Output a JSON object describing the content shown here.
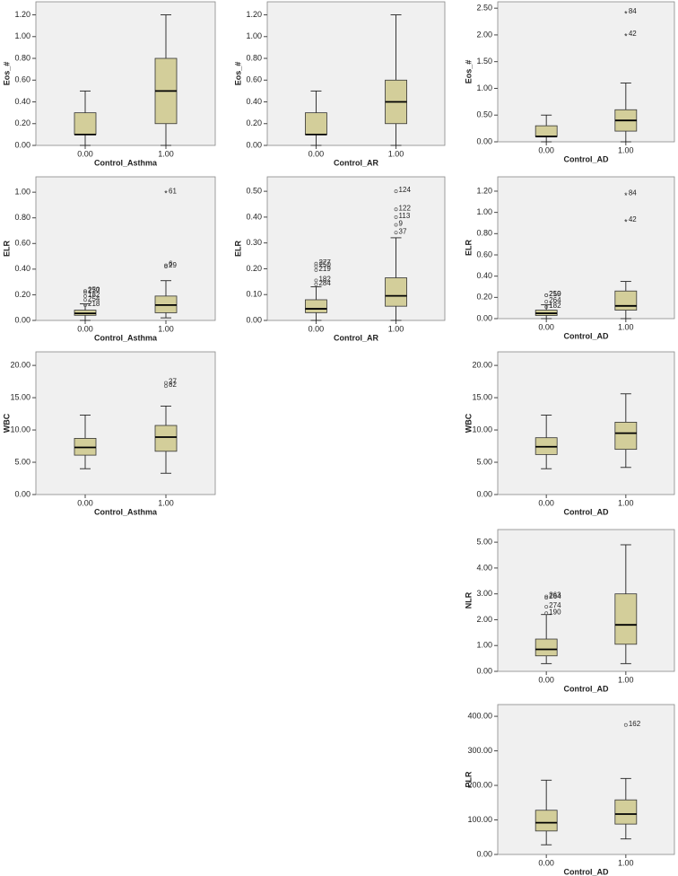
{
  "chart_data": [
    {
      "type": "box",
      "ylabel": "Eos_#",
      "xlabel": "Control_Asthma",
      "categories": [
        "0.00",
        "1.00"
      ],
      "color": "#d3ce9a",
      "ylim": [
        0,
        1.32
      ],
      "yticks": [
        {
          "value": 0,
          "label": "0.00"
        },
        {
          "value": 0.2,
          "label": "0.20"
        },
        {
          "value": 0.4,
          "label": "0.40"
        },
        {
          "value": 0.6,
          "label": "0.60"
        },
        {
          "value": 0.8,
          "label": "0.80"
        },
        {
          "value": 1,
          "label": "1.00"
        },
        {
          "value": 1.2,
          "label": "1.20"
        }
      ],
      "boxes": [
        {
          "min": 0,
          "q1": 0.1,
          "median": 0.1,
          "q3": 0.3,
          "max": 0.5,
          "outliers": []
        },
        {
          "min": 0,
          "q1": 0.2,
          "median": 0.5,
          "q3": 0.8,
          "max": 1.2,
          "outliers": []
        }
      ]
    },
    {
      "type": "box",
      "ylabel": "Eos_#",
      "xlabel": "Control_AR",
      "categories": [
        "0.00",
        "1.00"
      ],
      "color": "#d3ce9a",
      "ylim": [
        0,
        1.32
      ],
      "yticks": [
        {
          "value": 0,
          "label": "0.00"
        },
        {
          "value": 0.2,
          "label": "0.20"
        },
        {
          "value": 0.4,
          "label": "0.40"
        },
        {
          "value": 0.6,
          "label": "0.60"
        },
        {
          "value": 0.8,
          "label": "0.80"
        },
        {
          "value": 1,
          "label": "1.00"
        },
        {
          "value": 1.2,
          "label": "1.20"
        }
      ],
      "boxes": [
        {
          "min": 0,
          "q1": 0.1,
          "median": 0.1,
          "q3": 0.3,
          "max": 0.5,
          "outliers": []
        },
        {
          "min": 0,
          "q1": 0.2,
          "median": 0.4,
          "q3": 0.6,
          "max": 1.2,
          "outliers": []
        }
      ]
    },
    {
      "type": "box",
      "ylabel": "Eos_#",
      "xlabel": "Control_AD",
      "categories": [
        "0.00",
        "1.00"
      ],
      "color": "#d3ce9a",
      "ylim": [
        0,
        2.62
      ],
      "yticks": [
        {
          "value": 0,
          "label": "0.00"
        },
        {
          "value": 0.5,
          "label": "0.50"
        },
        {
          "value": 1,
          "label": "1.00"
        },
        {
          "value": 1.5,
          "label": "1.50"
        },
        {
          "value": 2,
          "label": "2.00"
        },
        {
          "value": 2.5,
          "label": "2.50"
        }
      ],
      "boxes": [
        {
          "min": 0,
          "q1": 0.1,
          "median": 0.1,
          "q3": 0.3,
          "max": 0.5,
          "outliers": []
        },
        {
          "min": 0,
          "q1": 0.2,
          "median": 0.4,
          "q3": 0.6,
          "max": 1.1,
          "outliers": [
            {
              "value": 2.42,
              "label": "84",
              "marker": "star"
            },
            {
              "value": 2.0,
              "label": "42",
              "marker": "star"
            }
          ]
        }
      ]
    },
    {
      "type": "box",
      "ylabel": "ELR",
      "xlabel": "Control_Asthma",
      "categories": [
        "0.00",
        "1.00"
      ],
      "color": "#d3ce9a",
      "ylim": [
        0,
        1.12
      ],
      "yticks": [
        {
          "value": 0,
          "label": "0.00"
        },
        {
          "value": 0.2,
          "label": "0.20"
        },
        {
          "value": 0.4,
          "label": "0.40"
        },
        {
          "value": 0.6,
          "label": "0.60"
        },
        {
          "value": 0.8,
          "label": "0.80"
        },
        {
          "value": 1,
          "label": "1.00"
        }
      ],
      "boxes": [
        {
          "min": 0,
          "q1": 0.04,
          "median": 0.055,
          "q3": 0.08,
          "max": 0.13,
          "outliers": [
            {
              "value": 0.22,
              "label": "277",
              "marker": "circle"
            },
            {
              "value": 0.23,
              "label": "250",
              "marker": "circle"
            },
            {
              "value": 0.16,
              "label": "254",
              "marker": "circle"
            },
            {
              "value": 0.19,
              "label": "182",
              "marker": "circle"
            },
            {
              "value": 0.12,
              "label": "218",
              "marker": "circle"
            }
          ]
        },
        {
          "min": 0.02,
          "q1": 0.06,
          "median": 0.12,
          "q3": 0.19,
          "max": 0.31,
          "outliers": [
            {
              "value": 1.0,
              "label": "61",
              "marker": "star"
            },
            {
              "value": 0.43,
              "label": "6",
              "marker": "circle"
            },
            {
              "value": 0.42,
              "label": "29",
              "marker": "circle"
            }
          ]
        }
      ]
    },
    {
      "type": "box",
      "ylabel": "ELR",
      "xlabel": "Control_AR",
      "categories": [
        "0.00",
        "1.00"
      ],
      "color": "#d3ce9a",
      "ylim": [
        0,
        0.556
      ],
      "yticks": [
        {
          "value": 0,
          "label": "0.00"
        },
        {
          "value": 0.1,
          "label": "0.10"
        },
        {
          "value": 0.2,
          "label": "0.20"
        },
        {
          "value": 0.3,
          "label": "0.30"
        },
        {
          "value": 0.4,
          "label": "0.40"
        },
        {
          "value": 0.5,
          "label": "0.50"
        }
      ],
      "boxes": [
        {
          "min": 0,
          "q1": 0.03,
          "median": 0.045,
          "q3": 0.08,
          "max": 0.13,
          "outliers": [
            {
              "value": 0.21,
              "label": "250",
              "marker": "circle"
            },
            {
              "value": 0.22,
              "label": "277",
              "marker": "circle"
            },
            {
              "value": 0.195,
              "label": "219",
              "marker": "circle"
            },
            {
              "value": 0.155,
              "label": "182",
              "marker": "circle"
            },
            {
              "value": 0.14,
              "label": "284",
              "marker": "circle"
            }
          ]
        },
        {
          "min": 0,
          "q1": 0.055,
          "median": 0.095,
          "q3": 0.165,
          "max": 0.32,
          "outliers": [
            {
              "value": 0.5,
              "label": "124",
              "marker": "circle"
            },
            {
              "value": 0.43,
              "label": "122",
              "marker": "circle"
            },
            {
              "value": 0.4,
              "label": "113",
              "marker": "circle"
            },
            {
              "value": 0.37,
              "label": "9",
              "marker": "circle"
            },
            {
              "value": 0.34,
              "label": "37",
              "marker": "circle"
            }
          ]
        }
      ]
    },
    {
      "type": "box",
      "ylabel": "ELR",
      "xlabel": "Control_AD",
      "categories": [
        "0.00",
        "1.00"
      ],
      "color": "#d3ce9a",
      "ylim": [
        0,
        1.335
      ],
      "yticks": [
        {
          "value": 0,
          "label": "0.00"
        },
        {
          "value": 0.2,
          "label": "0.20"
        },
        {
          "value": 0.4,
          "label": "0.40"
        },
        {
          "value": 0.6,
          "label": "0.60"
        },
        {
          "value": 0.8,
          "label": "0.80"
        },
        {
          "value": 1,
          "label": "1.00"
        },
        {
          "value": 1.2,
          "label": "1.20"
        }
      ],
      "boxes": [
        {
          "min": 0,
          "q1": 0.03,
          "median": 0.05,
          "q3": 0.08,
          "max": 0.13,
          "outliers": [
            {
              "value": 0.22,
              "label": "250",
              "marker": "circle"
            },
            {
              "value": 0.22,
              "label": "219",
              "marker": "circle"
            },
            {
              "value": 0.16,
              "label": "264",
              "marker": "circle"
            },
            {
              "value": 0.11,
              "label": "182",
              "marker": "circle"
            }
          ]
        },
        {
          "min": 0,
          "q1": 0.08,
          "median": 0.12,
          "q3": 0.26,
          "max": 0.35,
          "outliers": [
            {
              "value": 1.17,
              "label": "84",
              "marker": "star"
            },
            {
              "value": 0.92,
              "label": "42",
              "marker": "star"
            }
          ]
        }
      ]
    },
    {
      "type": "box",
      "ylabel": "WBC",
      "xlabel": "Control_Asthma",
      "categories": [
        "0.00",
        "1.00"
      ],
      "color": "#d3ce9a",
      "ylim": [
        0,
        22.1
      ],
      "yticks": [
        {
          "value": 0,
          "label": "0.00"
        },
        {
          "value": 5,
          "label": "5.00"
        },
        {
          "value": 10,
          "label": "10.00"
        },
        {
          "value": 15,
          "label": "15.00"
        },
        {
          "value": 20,
          "label": "20.00"
        }
      ],
      "boxes": [
        {
          "min": 4.0,
          "q1": 6.1,
          "median": 7.3,
          "q3": 8.7,
          "max": 12.3,
          "outliers": []
        },
        {
          "min": 3.3,
          "q1": 6.7,
          "median": 8.9,
          "q3": 10.7,
          "max": 13.7,
          "outliers": [
            {
              "value": 17.3,
              "label": "27",
              "marker": "circle"
            },
            {
              "value": 16.8,
              "label": "82",
              "marker": "circle"
            }
          ]
        }
      ]
    },
    {
      "type": "box",
      "ylabel": "WBC",
      "xlabel": "Control_AD",
      "categories": [
        "0.00",
        "1.00"
      ],
      "color": "#d3ce9a",
      "ylim": [
        0,
        22.1
      ],
      "yticks": [
        {
          "value": 0,
          "label": "0.00"
        },
        {
          "value": 5,
          "label": "5.00"
        },
        {
          "value": 10,
          "label": "10.00"
        },
        {
          "value": 15,
          "label": "15.00"
        },
        {
          "value": 20,
          "label": "20.00"
        }
      ],
      "boxes": [
        {
          "min": 4.0,
          "q1": 6.2,
          "median": 7.4,
          "q3": 8.8,
          "max": 12.3,
          "outliers": []
        },
        {
          "min": 4.2,
          "q1": 7.0,
          "median": 9.5,
          "q3": 11.2,
          "max": 15.6,
          "outliers": []
        }
      ]
    },
    {
      "type": "box",
      "ylabel": "NLR",
      "xlabel": "Control_AD",
      "categories": [
        "0.00",
        "1.00"
      ],
      "color": "#d3ce9a",
      "ylim": [
        0,
        5.49
      ],
      "yticks": [
        {
          "value": 0,
          "label": "0.00"
        },
        {
          "value": 1,
          "label": "1.00"
        },
        {
          "value": 2,
          "label": "2.00"
        },
        {
          "value": 3,
          "label": "3.00"
        },
        {
          "value": 4,
          "label": "4.00"
        },
        {
          "value": 5,
          "label": "5.00"
        }
      ],
      "boxes": [
        {
          "min": 0.3,
          "q1": 0.6,
          "median": 0.85,
          "q3": 1.25,
          "max": 2.2,
          "outliers": [
            {
              "value": 2.85,
              "label": "264",
              "marker": "circle"
            },
            {
              "value": 2.9,
              "label": "263",
              "marker": "circle"
            },
            {
              "value": 2.5,
              "label": "274",
              "marker": "circle"
            },
            {
              "value": 2.25,
              "label": "190",
              "marker": "circle"
            }
          ]
        },
        {
          "min": 0.3,
          "q1": 1.05,
          "median": 1.8,
          "q3": 3.0,
          "max": 4.9,
          "outliers": []
        }
      ]
    },
    {
      "type": "box",
      "ylabel": "PLR",
      "xlabel": "Control_AD",
      "categories": [
        "0.00",
        "1.00"
      ],
      "color": "#d3ce9a",
      "ylim": [
        0,
        434
      ],
      "yticks": [
        {
          "value": 0,
          "label": "0.00"
        },
        {
          "value": 100,
          "label": "100.00"
        },
        {
          "value": 200,
          "label": "200.00"
        },
        {
          "value": 300,
          "label": "300.00"
        },
        {
          "value": 400,
          "label": "400.00"
        }
      ],
      "boxes": [
        {
          "min": 28,
          "q1": 68,
          "median": 92,
          "q3": 128,
          "max": 215,
          "outliers": []
        },
        {
          "min": 45,
          "q1": 88,
          "median": 117,
          "q3": 158,
          "max": 220,
          "outliers": [
            {
              "value": 375,
              "label": "162",
              "marker": "circle"
            }
          ]
        }
      ]
    }
  ]
}
